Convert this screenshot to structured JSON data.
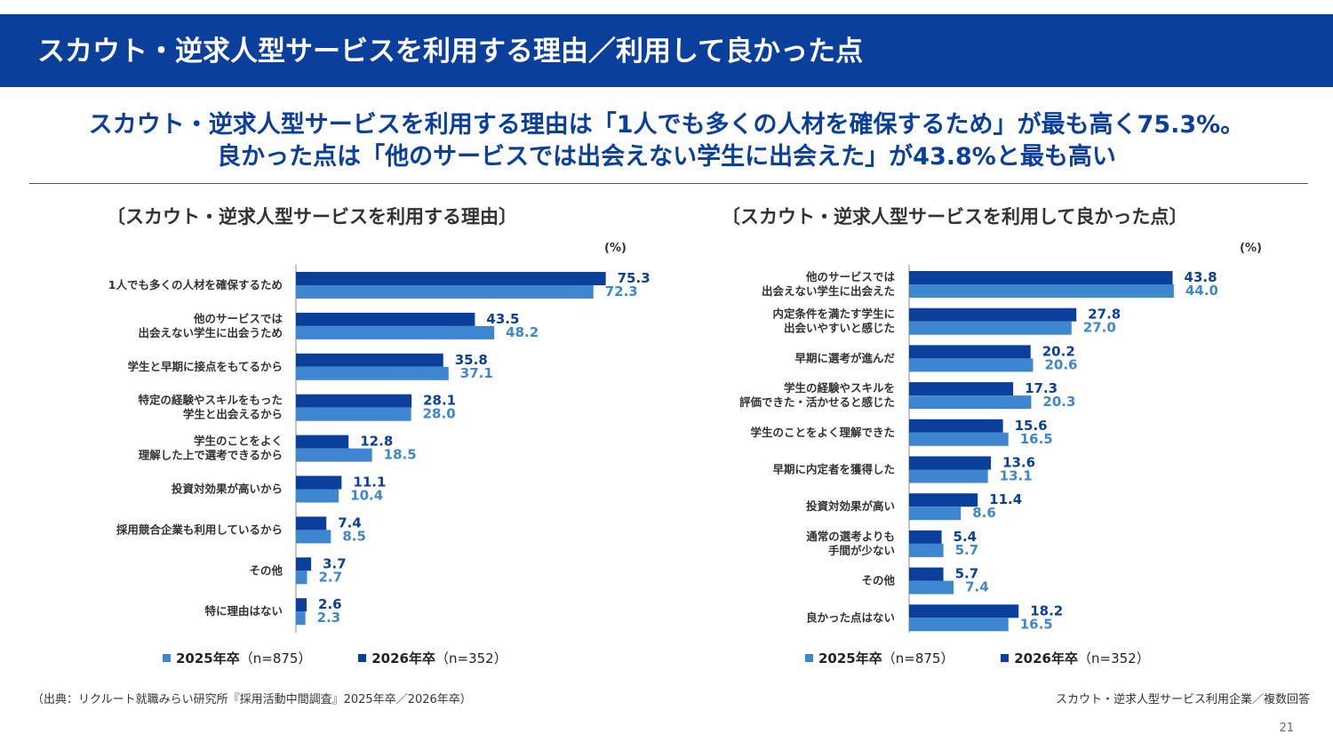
{
  "header": {
    "title": "スカウト・逆求人型サービスを利用する理由／利用して良かった点"
  },
  "headline": {
    "line1": "スカウト・逆求人型サービスを利用する理由は「1人でも多くの人材を確保するため」が最も高く75.3%。",
    "line2": "良かった点は「他のサービスでは出会えない学生に出会えた」が43.8%と最も高い"
  },
  "colors": {
    "series_2026": "#0a3f9c",
    "series_2025": "#3e86cf",
    "header_bg": "#0a3f9c"
  },
  "legend": {
    "s2025_label": "2025年卒",
    "s2025_n": "（n=875）",
    "s2026_label": "2026年卒",
    "s2026_n": "（n=352）"
  },
  "footer": {
    "source": "（出典：リクルート就職みらい研究所『採用活動中間調査』2025年卒／2026年卒）",
    "note": "スカウト・逆求人型サービス利用企業／複数回答",
    "page": "21"
  },
  "chart_data": [
    {
      "type": "bar",
      "orientation": "horizontal",
      "title": "〔スカウト・逆求人型サービスを利用する理由〕",
      "unit": "(%)",
      "categories": [
        "1人でも多くの人材を確保するため",
        "他のサービスでは\n出会えない学生に出会うため",
        "学生と早期に接点をもてるから",
        "特定の経験やスキルをもった\n学生と出会えるから",
        "学生のことをよく\n理解した上で選考できるから",
        "投資対効果が高いから",
        "採用競合企業も利用しているから",
        "その他",
        "特に理由はない"
      ],
      "series": [
        {
          "name": "2026年卒",
          "values": [
            75.3,
            43.5,
            35.8,
            28.1,
            12.8,
            11.1,
            7.4,
            3.7,
            2.6
          ]
        },
        {
          "name": "2025年卒",
          "values": [
            72.3,
            48.2,
            37.1,
            28.0,
            18.5,
            10.4,
            8.5,
            2.7,
            2.3
          ]
        }
      ],
      "xlim": [
        0,
        100
      ]
    },
    {
      "type": "bar",
      "orientation": "horizontal",
      "title": "〔スカウト・逆求人型サービスを利用して良かった点〕",
      "unit": "(%)",
      "categories": [
        "他のサービスでは\n出会えない学生に出会えた",
        "内定条件を満たす学生に\n出会いやすいと感じた",
        "早期に選考が進んだ",
        "学生の経験やスキルを\n評価できた・活かせると感じた",
        "学生のことをよく理解できた",
        "早期に内定者を獲得した",
        "投資対効果が高い",
        "通常の選考よりも\n手間が少ない",
        "その他",
        "良かった点はない"
      ],
      "series": [
        {
          "name": "2026年卒",
          "values": [
            43.8,
            27.8,
            20.2,
            17.3,
            15.6,
            13.6,
            11.4,
            5.4,
            5.7,
            18.2
          ]
        },
        {
          "name": "2025年卒",
          "values": [
            44.0,
            27.0,
            20.6,
            20.3,
            16.5,
            13.1,
            8.6,
            5.7,
            7.4,
            16.5
          ]
        }
      ],
      "xlim": [
        0,
        65
      ]
    }
  ]
}
